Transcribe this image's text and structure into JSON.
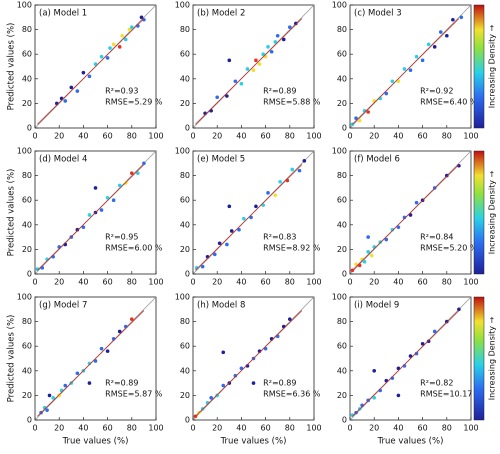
{
  "chart_data": [
    {
      "type": "scatter",
      "title": "(a) Model 1",
      "annotations": [
        "R²=0.93",
        "RMSE=5.29 %"
      ],
      "ylabel": "Predicted values (%)",
      "x": [
        18,
        22,
        25,
        30,
        35,
        40,
        45,
        50,
        55,
        60,
        62,
        65,
        70,
        72,
        75,
        78,
        80,
        85,
        88,
        90
      ],
      "y": [
        20,
        24,
        22,
        33,
        30,
        45,
        42,
        52,
        58,
        57,
        65,
        68,
        66,
        75,
        72,
        80,
        82,
        83,
        90,
        88
      ],
      "colors": [
        "#1f1f9a",
        "#1f1f9a",
        "#2b6cf0",
        "#1f1f9a",
        "#2b6cf0",
        "#1f1f9a",
        "#2b6cf0",
        "#2ad0e8",
        "#2ad0e8",
        "#2b6cf0",
        "#2ad0e8",
        "#f2e030",
        "#e8321e",
        "#f2e030",
        "#2ad0e8",
        "#f2e030",
        "#2ad0e8",
        "#2b6cf0",
        "#1f1f9a",
        "#2b6cf0"
      ],
      "xlim": [
        0,
        100
      ],
      "ylim": [
        0,
        100
      ],
      "xticks": [
        0,
        20,
        40,
        60,
        80,
        100
      ],
      "yticks": [
        0,
        20,
        40,
        60,
        80,
        100
      ]
    },
    {
      "type": "scatter",
      "title": "(b) Model 2",
      "annotations": [
        "R²=0.89",
        "RMSE=5.88 %"
      ],
      "x": [
        10,
        15,
        20,
        28,
        35,
        40,
        45,
        50,
        52,
        55,
        58,
        60,
        62,
        65,
        68,
        70,
        75,
        80,
        85,
        30
      ],
      "y": [
        12,
        14,
        25,
        26,
        38,
        36,
        48,
        47,
        55,
        52,
        60,
        58,
        66,
        62,
        70,
        75,
        72,
        82,
        85,
        55
      ],
      "colors": [
        "#1f1f9a",
        "#1f1f9a",
        "#2b6cf0",
        "#1f1f9a",
        "#2b6cf0",
        "#2ad0e8",
        "#2ad0e8",
        "#f2e030",
        "#e8321e",
        "#f2e030",
        "#2ad0e8",
        "#f2e030",
        "#2ad0e8",
        "#2b6cf0",
        "#2ad0e8",
        "#2b6cf0",
        "#1f1f9a",
        "#2b6cf0",
        "#1f1f9a",
        "#1f1f9a"
      ],
      "xlim": [
        0,
        100
      ],
      "ylim": [
        0,
        100
      ],
      "xticks": [
        0,
        20,
        40,
        60,
        80,
        100
      ],
      "yticks": [
        0,
        20,
        40,
        60,
        80,
        100
      ]
    },
    {
      "type": "scatter",
      "title": "(c) Model 3",
      "annotations": [
        "R²=0.92",
        "RMSE=6.40 %"
      ],
      "colorbar_label": "Increasing Density →",
      "x": [
        2,
        5,
        8,
        12,
        15,
        20,
        25,
        30,
        35,
        40,
        45,
        50,
        55,
        60,
        65,
        70,
        75,
        80,
        85,
        92
      ],
      "y": [
        3,
        8,
        6,
        14,
        13,
        22,
        24,
        28,
        38,
        38,
        48,
        47,
        58,
        55,
        68,
        66,
        78,
        75,
        88,
        90
      ],
      "colors": [
        "#2ad0e8",
        "#2b6cf0",
        "#f2e030",
        "#2ad0e8",
        "#e8321e",
        "#f2e030",
        "#2ad0e8",
        "#2b6cf0",
        "#2ad0e8",
        "#f2e030",
        "#2ad0e8",
        "#2b6cf0",
        "#2ad0e8",
        "#2b6cf0",
        "#2ad0e8",
        "#1f1f9a",
        "#2b6cf0",
        "#1f1f9a",
        "#1f1f9a",
        "#2b6cf0"
      ],
      "xlim": [
        0,
        100
      ],
      "ylim": [
        0,
        100
      ],
      "xticks": [
        0,
        20,
        40,
        60,
        80,
        100
      ],
      "yticks": [
        0,
        20,
        40,
        60,
        80,
        100
      ]
    },
    {
      "type": "scatter",
      "title": "(d) Model 4",
      "annotations": [
        "R²=0.95",
        "RMSE=6.00 %"
      ],
      "ylabel": "Predicted values (%)",
      "x": [
        2,
        6,
        10,
        15,
        20,
        25,
        30,
        35,
        40,
        45,
        50,
        55,
        60,
        65,
        70,
        75,
        80,
        85,
        90,
        50
      ],
      "y": [
        4,
        5,
        12,
        14,
        22,
        24,
        30,
        36,
        38,
        48,
        50,
        52,
        62,
        60,
        72,
        74,
        82,
        82,
        90,
        70
      ],
      "colors": [
        "#2ad0e8",
        "#2b6cf0",
        "#2ad0e8",
        "#2b6cf0",
        "#2b6cf0",
        "#1f1f9a",
        "#2b6cf0",
        "#1f1f9a",
        "#2b6cf0",
        "#2ad0e8",
        "#1f1f9a",
        "#2b6cf0",
        "#2ad0e8",
        "#2b6cf0",
        "#2ad0e8",
        "#f2e030",
        "#e8321e",
        "#2ad0e8",
        "#2b6cf0",
        "#1f1f9a"
      ],
      "xlim": [
        0,
        100
      ],
      "ylim": [
        0,
        100
      ],
      "xticks": [
        0,
        20,
        40,
        60,
        80,
        100
      ],
      "yticks": [
        0,
        20,
        40,
        60,
        80,
        100
      ]
    },
    {
      "type": "scatter",
      "title": "(e) Model 5",
      "annotations": [
        "R²=0.83",
        "RMSE=8.92 %"
      ],
      "x": [
        3,
        8,
        12,
        18,
        22,
        28,
        32,
        38,
        42,
        48,
        52,
        58,
        62,
        68,
        72,
        78,
        82,
        88,
        92,
        30
      ],
      "y": [
        5,
        6,
        14,
        16,
        25,
        24,
        35,
        36,
        45,
        46,
        55,
        56,
        66,
        64,
        75,
        76,
        85,
        84,
        92,
        55
      ],
      "colors": [
        "#2ad0e8",
        "#2b6cf0",
        "#1f1f9a",
        "#2b6cf0",
        "#1f1f9a",
        "#2b6cf0",
        "#1f1f9a",
        "#2b6cf0",
        "#2ad0e8",
        "#2b6cf0",
        "#1f1f9a",
        "#2ad0e8",
        "#2b6cf0",
        "#f2e030",
        "#2ad0e8",
        "#e8321e",
        "#2ad0e8",
        "#2b6cf0",
        "#1f1f9a",
        "#1f1f9a"
      ],
      "xlim": [
        0,
        100
      ],
      "ylim": [
        0,
        100
      ],
      "xticks": [
        0,
        20,
        40,
        60,
        80,
        100
      ],
      "yticks": [
        0,
        20,
        40,
        60,
        80,
        100
      ]
    },
    {
      "type": "scatter",
      "title": "(f) Model 6",
      "annotations": [
        "R²=0.84",
        "RMSE=5.20 %"
      ],
      "colorbar_label": "Increasing Density →",
      "x": [
        2,
        5,
        8,
        10,
        12,
        15,
        18,
        20,
        25,
        30,
        35,
        40,
        45,
        50,
        55,
        60,
        70,
        80,
        90,
        15
      ],
      "y": [
        3,
        8,
        7,
        12,
        10,
        18,
        15,
        22,
        26,
        28,
        36,
        38,
        46,
        48,
        58,
        60,
        70,
        80,
        88,
        30
      ],
      "colors": [
        "#e8321e",
        "#f2e030",
        "#e8321e",
        "#f2e030",
        "#2ad0e8",
        "#2ad0e8",
        "#f2e030",
        "#2ad0e8",
        "#2ad0e8",
        "#2b6cf0",
        "#2ad0e8",
        "#2b6cf0",
        "#2b6cf0",
        "#1f1f9a",
        "#2b6cf0",
        "#1f1f9a",
        "#2b6cf0",
        "#1f1f9a",
        "#1f1f9a",
        "#2b6cf0"
      ],
      "xlim": [
        0,
        100
      ],
      "ylim": [
        0,
        100
      ],
      "xticks": [
        0,
        20,
        40,
        60,
        80,
        100
      ],
      "yticks": [
        0,
        20,
        40,
        60,
        80,
        100
      ]
    },
    {
      "type": "scatter",
      "title": "(g) Model 7",
      "annotations": [
        "R²=0.89",
        "RMSE=5.87 %"
      ],
      "ylabel": "Predicted values (%)",
      "xlabel": "True values (%)",
      "x": [
        5,
        8,
        10,
        15,
        20,
        22,
        25,
        30,
        35,
        40,
        45,
        50,
        55,
        60,
        65,
        70,
        75,
        80,
        12,
        45
      ],
      "y": [
        6,
        10,
        8,
        18,
        20,
        24,
        28,
        30,
        38,
        40,
        46,
        48,
        58,
        56,
        66,
        72,
        76,
        82,
        20,
        30
      ],
      "colors": [
        "#2b6cf0",
        "#2ad0e8",
        "#2b6cf0",
        "#2ad0e8",
        "#f2e030",
        "#2ad0e8",
        "#2b6cf0",
        "#2ad0e8",
        "#2b6cf0",
        "#2ad0e8",
        "#2ad0e8",
        "#2b6cf0",
        "#2b6cf0",
        "#1f1f9a",
        "#2b6cf0",
        "#1f1f9a",
        "#2b6cf0",
        "#e8321e",
        "#1f1f9a",
        "#1f1f9a"
      ],
      "xlim": [
        0,
        100
      ],
      "ylim": [
        0,
        100
      ],
      "xticks": [
        0,
        20,
        40,
        60,
        80,
        100
      ],
      "yticks": [
        0,
        20,
        40,
        60,
        80,
        100
      ]
    },
    {
      "type": "scatter",
      "title": "(h) Model 8",
      "annotations": [
        "R²=0.89",
        "RMSE=6.36 %"
      ],
      "xlabel": "True values (%)",
      "x": [
        2,
        5,
        8,
        12,
        15,
        20,
        25,
        30,
        35,
        40,
        45,
        50,
        55,
        60,
        65,
        70,
        75,
        80,
        25,
        50
      ],
      "y": [
        3,
        6,
        9,
        14,
        18,
        20,
        28,
        30,
        36,
        42,
        44,
        50,
        56,
        58,
        66,
        68,
        76,
        82,
        55,
        30
      ],
      "colors": [
        "#e8321e",
        "#f2e030",
        "#2ad0e8",
        "#2ad0e8",
        "#2b6cf0",
        "#2ad0e8",
        "#2b6cf0",
        "#1f1f9a",
        "#2b6cf0",
        "#2b6cf0",
        "#1f1f9a",
        "#2b6cf0",
        "#1f1f9a",
        "#2b6cf0",
        "#1f1f9a",
        "#2b6cf0",
        "#1f1f9a",
        "#1f1f9a",
        "#1f1f9a",
        "#1f1f9a"
      ],
      "xlim": [
        0,
        100
      ],
      "ylim": [
        0,
        100
      ],
      "xticks": [
        0,
        20,
        40,
        60,
        80,
        100
      ],
      "yticks": [
        0,
        20,
        40,
        60,
        80,
        100
      ]
    },
    {
      "type": "scatter",
      "title": "(i) Model 9",
      "annotations": [
        "R²=0.82",
        "RMSE=10.17 %"
      ],
      "xlabel": "True values (%)",
      "colorbar_label": "Increasing Density →",
      "x": [
        2,
        5,
        8,
        10,
        15,
        20,
        25,
        30,
        35,
        40,
        45,
        50,
        55,
        60,
        65,
        70,
        80,
        90,
        20,
        40
      ],
      "y": [
        4,
        6,
        9,
        12,
        16,
        18,
        24,
        32,
        34,
        42,
        44,
        52,
        54,
        62,
        64,
        72,
        80,
        90,
        40,
        20
      ],
      "colors": [
        "#2ad0e8",
        "#2b6cf0",
        "#2ad0e8",
        "#2b6cf0",
        "#2b6cf0",
        "#2ad0e8",
        "#2b6cf0",
        "#1f1f9a",
        "#2b6cf0",
        "#1f1f9a",
        "#2b6cf0",
        "#1f1f9a",
        "#2b6cf0",
        "#1f1f9a",
        "#1f1f9a",
        "#2b6cf0",
        "#1f1f9a",
        "#1f1f9a",
        "#1f1f9a",
        "#1f1f9a"
      ],
      "xlim": [
        0,
        100
      ],
      "ylim": [
        0,
        100
      ],
      "xticks": [
        0,
        20,
        40,
        60,
        80,
        100
      ],
      "yticks": [
        0,
        20,
        40,
        60,
        80,
        100
      ]
    }
  ]
}
